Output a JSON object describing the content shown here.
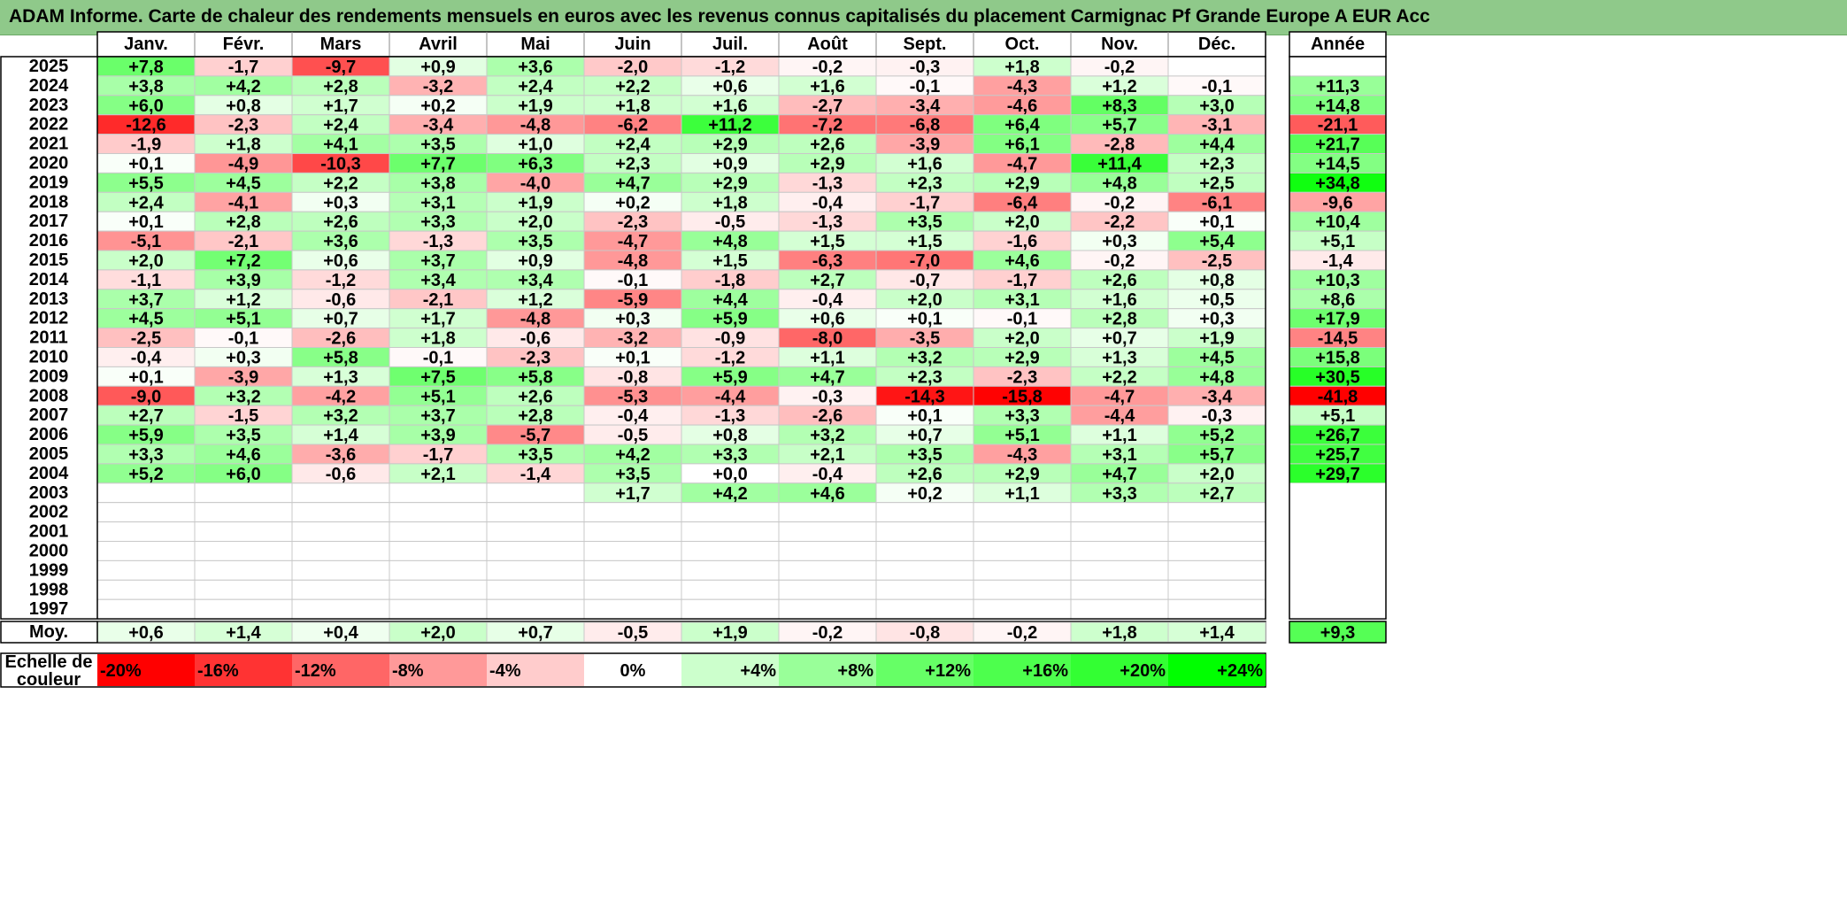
{
  "title": "ADAM Informe. Carte de chaleur des rendements mensuels en euros avec les revenus connus capitalisés du placement Carmignac Pf Grande Europe A EUR Acc",
  "chart_data": {
    "type": "heatmap",
    "months": [
      "Janv.",
      "Févr.",
      "Mars",
      "Avril",
      "Mai",
      "Juin",
      "Juil.",
      "Août",
      "Sept.",
      "Oct.",
      "Nov.",
      "Déc."
    ],
    "annual_header": "Année",
    "rows": [
      {
        "year": "2025",
        "values": [
          "+7,8",
          "-1,7",
          "-9,7",
          "+0,9",
          "+3,6",
          "-2,0",
          "-1,2",
          "-0,2",
          "-0,3",
          "+1,8",
          "-0,2",
          ""
        ],
        "annual": ""
      },
      {
        "year": "2024",
        "values": [
          "+3,8",
          "+4,2",
          "+2,8",
          "-3,2",
          "+2,4",
          "+2,2",
          "+0,6",
          "+1,6",
          "-0,1",
          "-4,3",
          "+1,2",
          "-0,1"
        ],
        "annual": "+11,3"
      },
      {
        "year": "2023",
        "values": [
          "+6,0",
          "+0,8",
          "+1,7",
          "+0,2",
          "+1,9",
          "+1,8",
          "+1,6",
          "-2,7",
          "-3,4",
          "-4,6",
          "+8,3",
          "+3,0"
        ],
        "annual": "+14,8"
      },
      {
        "year": "2022",
        "values": [
          "-12,6",
          "-2,3",
          "+2,4",
          "-3,4",
          "-4,8",
          "-6,2",
          "+11,2",
          "-7,2",
          "-6,8",
          "+6,4",
          "+5,7",
          "-3,1"
        ],
        "annual": "-21,1"
      },
      {
        "year": "2021",
        "values": [
          "-1,9",
          "+1,8",
          "+4,1",
          "+3,5",
          "+1,0",
          "+2,4",
          "+2,9",
          "+2,6",
          "-3,9",
          "+6,1",
          "-2,8",
          "+4,4"
        ],
        "annual": "+21,7"
      },
      {
        "year": "2020",
        "values": [
          "+0,1",
          "-4,9",
          "-10,3",
          "+7,7",
          "+6,3",
          "+2,3",
          "+0,9",
          "+2,9",
          "+1,6",
          "-4,7",
          "+11,4",
          "+2,3"
        ],
        "annual": "+14,5"
      },
      {
        "year": "2019",
        "values": [
          "+5,5",
          "+4,5",
          "+2,2",
          "+3,8",
          "-4,0",
          "+4,7",
          "+2,9",
          "-1,3",
          "+2,3",
          "+2,9",
          "+4,8",
          "+2,5"
        ],
        "annual": "+34,8"
      },
      {
        "year": "2018",
        "values": [
          "+2,4",
          "-4,1",
          "+0,3",
          "+3,1",
          "+1,9",
          "+0,2",
          "+1,8",
          "-0,4",
          "-1,7",
          "-6,4",
          "-0,2",
          "-6,1"
        ],
        "annual": "-9,6"
      },
      {
        "year": "2017",
        "values": [
          "+0,1",
          "+2,8",
          "+2,6",
          "+3,3",
          "+2,0",
          "-2,3",
          "-0,5",
          "-1,3",
          "+3,5",
          "+2,0",
          "-2,2",
          "+0,1"
        ],
        "annual": "+10,4"
      },
      {
        "year": "2016",
        "values": [
          "-5,1",
          "-2,1",
          "+3,6",
          "-1,3",
          "+3,5",
          "-4,7",
          "+4,8",
          "+1,5",
          "+1,5",
          "-1,6",
          "+0,3",
          "+5,4"
        ],
        "annual": "+5,1"
      },
      {
        "year": "2015",
        "values": [
          "+2,0",
          "+7,2",
          "+0,6",
          "+3,7",
          "+0,9",
          "-4,8",
          "+1,5",
          "-6,3",
          "-7,0",
          "+4,6",
          "-0,2",
          "-2,5"
        ],
        "annual": "-1,4"
      },
      {
        "year": "2014",
        "values": [
          "-1,1",
          "+3,9",
          "-1,2",
          "+3,4",
          "+3,4",
          "-0,1",
          "-1,8",
          "+2,7",
          "-0,7",
          "-1,7",
          "+2,6",
          "+0,8"
        ],
        "annual": "+10,3"
      },
      {
        "year": "2013",
        "values": [
          "+3,7",
          "+1,2",
          "-0,6",
          "-2,1",
          "+1,2",
          "-5,9",
          "+4,4",
          "-0,4",
          "+2,0",
          "+3,1",
          "+1,6",
          "+0,5"
        ],
        "annual": "+8,6"
      },
      {
        "year": "2012",
        "values": [
          "+4,5",
          "+5,1",
          "+0,7",
          "+1,7",
          "-4,8",
          "+0,3",
          "+5,9",
          "+0,6",
          "+0,1",
          "-0,1",
          "+2,8",
          "+0,3"
        ],
        "annual": "+17,9"
      },
      {
        "year": "2011",
        "values": [
          "-2,5",
          "-0,1",
          "-2,6",
          "+1,8",
          "-0,6",
          "-3,2",
          "-0,9",
          "-8,0",
          "-3,5",
          "+2,0",
          "+0,7",
          "+1,9"
        ],
        "annual": "-14,5"
      },
      {
        "year": "2010",
        "values": [
          "-0,4",
          "+0,3",
          "+5,8",
          "-0,1",
          "-2,3",
          "+0,1",
          "-1,2",
          "+1,1",
          "+3,2",
          "+2,9",
          "+1,3",
          "+4,5"
        ],
        "annual": "+15,8"
      },
      {
        "year": "2009",
        "values": [
          "+0,1",
          "-3,9",
          "+1,3",
          "+7,5",
          "+5,8",
          "-0,8",
          "+5,9",
          "+4,7",
          "+2,3",
          "-2,3",
          "+2,2",
          "+4,8"
        ],
        "annual": "+30,5"
      },
      {
        "year": "2008",
        "values": [
          "-9,0",
          "+3,2",
          "-4,2",
          "+5,1",
          "+2,6",
          "-5,3",
          "-4,4",
          "-0,3",
          "-14,3",
          "-15,8",
          "-4,7",
          "-3,4"
        ],
        "annual": "-41,8"
      },
      {
        "year": "2007",
        "values": [
          "+2,7",
          "-1,5",
          "+3,2",
          "+3,7",
          "+2,8",
          "-0,4",
          "-1,3",
          "-2,6",
          "+0,1",
          "+3,3",
          "-4,4",
          "-0,3"
        ],
        "annual": "+5,1"
      },
      {
        "year": "2006",
        "values": [
          "+5,9",
          "+3,5",
          "+1,4",
          "+3,9",
          "-5,7",
          "-0,5",
          "+0,8",
          "+3,2",
          "+0,7",
          "+5,1",
          "+1,1",
          "+5,2"
        ],
        "annual": "+26,7"
      },
      {
        "year": "2005",
        "values": [
          "+3,3",
          "+4,6",
          "-3,6",
          "-1,7",
          "+3,5",
          "+4,2",
          "+3,3",
          "+2,1",
          "+3,5",
          "-4,3",
          "+3,1",
          "+5,7"
        ],
        "annual": "+25,7"
      },
      {
        "year": "2004",
        "values": [
          "+5,2",
          "+6,0",
          "-0,6",
          "+2,1",
          "-1,4",
          "+3,5",
          "+0,0",
          "-0,4",
          "+2,6",
          "+2,9",
          "+4,7",
          "+2,0"
        ],
        "annual": "+29,7"
      },
      {
        "year": "2003",
        "values": [
          "",
          "",
          "",
          "",
          "",
          "+1,7",
          "+4,2",
          "+4,6",
          "+0,2",
          "+1,1",
          "+3,3",
          "+2,7"
        ],
        "annual": ""
      },
      {
        "year": "2002",
        "values": [
          "",
          "",
          "",
          "",
          "",
          "",
          "",
          "",
          "",
          "",
          "",
          ""
        ],
        "annual": ""
      },
      {
        "year": "2001",
        "values": [
          "",
          "",
          "",
          "",
          "",
          "",
          "",
          "",
          "",
          "",
          "",
          ""
        ],
        "annual": ""
      },
      {
        "year": "2000",
        "values": [
          "",
          "",
          "",
          "",
          "",
          "",
          "",
          "",
          "",
          "",
          "",
          ""
        ],
        "annual": ""
      },
      {
        "year": "1999",
        "values": [
          "",
          "",
          "",
          "",
          "",
          "",
          "",
          "",
          "",
          "",
          "",
          ""
        ],
        "annual": ""
      },
      {
        "year": "1998",
        "values": [
          "",
          "",
          "",
          "",
          "",
          "",
          "",
          "",
          "",
          "",
          "",
          ""
        ],
        "annual": ""
      },
      {
        "year": "1997",
        "values": [
          "",
          "",
          "",
          "",
          "",
          "",
          "",
          "",
          "",
          "",
          "",
          ""
        ],
        "annual": ""
      }
    ],
    "average": {
      "label": "Moy.",
      "values": [
        "+0,6",
        "+1,4",
        "+0,4",
        "+2,0",
        "+0,7",
        "-0,5",
        "+1,9",
        "-0,2",
        "-0,8",
        "-0,2",
        "+1,8",
        "+1,4"
      ],
      "annual": "+9,3"
    },
    "color_scale": {
      "label_line1": "Echelle de",
      "label_line2": "couleur",
      "stops": [
        {
          "label": "-20%",
          "value": -20,
          "color": "#ff0000"
        },
        {
          "label": "-16%",
          "value": -16,
          "color": "#ff3333"
        },
        {
          "label": "-12%",
          "value": -12,
          "color": "#ff6666"
        },
        {
          "label": "-8%",
          "value": -8,
          "color": "#ff9999"
        },
        {
          "label": "-4%",
          "value": -4,
          "color": "#ffcccc"
        },
        {
          "label": "0%",
          "value": 0,
          "color": "#ffffff"
        },
        {
          "label": "+4%",
          "value": 4,
          "color": "#ccffcc"
        },
        {
          "label": "+8%",
          "value": 8,
          "color": "#99ff99"
        },
        {
          "label": "+12%",
          "value": 12,
          "color": "#66ff66"
        },
        {
          "label": "+16%",
          "value": 16,
          "color": "#4dff4d"
        },
        {
          "label": "+20%",
          "value": 20,
          "color": "#33ff33"
        },
        {
          "label": "+24%",
          "value": 24,
          "color": "#00ff00"
        }
      ]
    }
  }
}
